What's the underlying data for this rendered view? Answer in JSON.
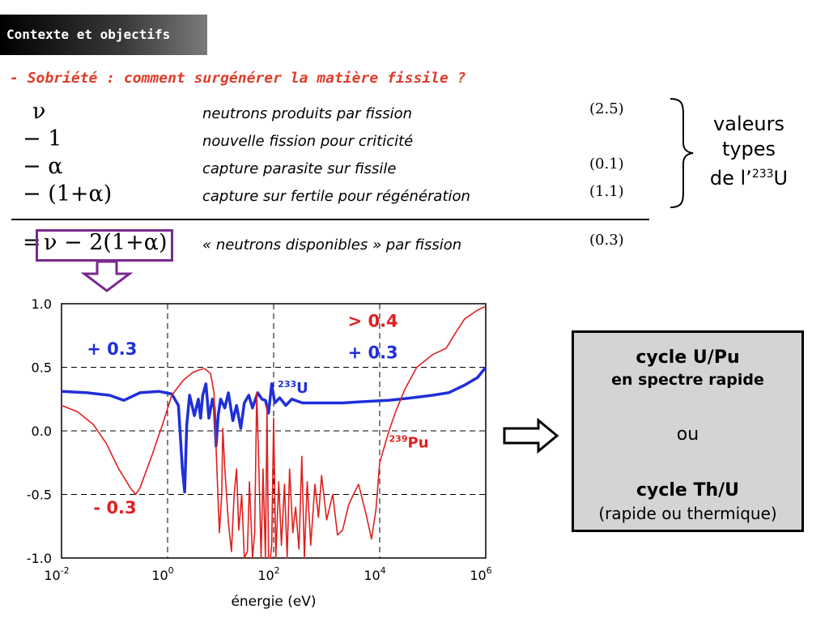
{
  "header": {
    "title": "Contexte et objectifs"
  },
  "subtitle": "- Sobriété : comment surgénérer la matière fissile ?",
  "terms": [
    {
      "symbol": "ν",
      "description": "neutrons produits par fission",
      "value": "(2.5)"
    },
    {
      "symbol": "− 1",
      "description": "nouvelle fission pour criticité",
      "value": ""
    },
    {
      "symbol": "− α",
      "description": "capture parasite sur fissile",
      "value": "(0.1)"
    },
    {
      "symbol": "− (1+α)",
      "description": "capture sur fertile pour régénération",
      "value": "(1.1)"
    }
  ],
  "result": {
    "equals": "=",
    "formula": "ν − 2(1+α)",
    "description": "« neutrons disponibles » par fission",
    "value": "(0.3)"
  },
  "typical_values": {
    "line1": "valeurs",
    "line2": "types",
    "line3_prefix": "de l’",
    "line3_sup": "233",
    "line3_suffix": "U"
  },
  "conclusion_box": {
    "line1": "cycle U/Pu",
    "line2": "en spectre rapide",
    "line3": "ou",
    "line4": "cycle Th/U",
    "line5": "(rapide ou thermique)"
  },
  "colors": {
    "u233": "#1f2fd8",
    "pu239": "#e02020",
    "accent": "#e03c28",
    "frame": "#7a2a8e"
  },
  "chart_data": {
    "type": "line",
    "xlabel": "énergie (eV)",
    "xscale": "log",
    "xlim": [
      0.01,
      1000000
    ],
    "ylim": [
      -1.0,
      1.0
    ],
    "x_ticks": [
      {
        "base": "10",
        "exp": "-2"
      },
      {
        "base": "10",
        "exp": "0"
      },
      {
        "base": "10",
        "exp": "2"
      },
      {
        "base": "10",
        "exp": "4"
      },
      {
        "base": "10",
        "exp": "6"
      }
    ],
    "y_ticks": [
      "1.0",
      "0.5",
      "0.0",
      "-0.5",
      "-1.0"
    ],
    "grid": "dashed",
    "annotations": [
      {
        "text": "+ 0.3",
        "color": "#1f2fd8",
        "x": 0.03,
        "y": 0.6
      },
      {
        "text": "+ 0.3",
        "color": "#1f2fd8",
        "x": 2500,
        "y": 0.57
      },
      {
        "text": "> 0.4",
        "color": "#e02020",
        "x": 2500,
        "y": 0.82
      },
      {
        "text": "- 0.3",
        "color": "#e02020",
        "x": 0.04,
        "y": -0.65
      }
    ],
    "series": [
      {
        "name": "233U",
        "name_sup": "233",
        "name_base": "U",
        "color": "#1f2fd8",
        "label_at": {
          "x": 120,
          "y": 0.3
        },
        "points": [
          [
            0.01,
            0.31
          ],
          [
            0.03,
            0.3
          ],
          [
            0.08,
            0.28
          ],
          [
            0.15,
            0.24
          ],
          [
            0.3,
            0.3
          ],
          [
            0.7,
            0.31
          ],
          [
            1.2,
            0.29
          ],
          [
            1.6,
            0.2
          ],
          [
            1.9,
            -0.3
          ],
          [
            2.1,
            -0.48
          ],
          [
            2.3,
            0.05
          ],
          [
            2.6,
            0.28
          ],
          [
            3.2,
            0.12
          ],
          [
            3.8,
            0.25
          ],
          [
            4.2,
            0.1
          ],
          [
            4.6,
            0.28
          ],
          [
            5.3,
            0.37
          ],
          [
            6,
            0.1
          ],
          [
            7,
            0.25
          ],
          [
            7.6,
            0.18
          ],
          [
            8.2,
            -0.12
          ],
          [
            9,
            0.12
          ],
          [
            10,
            0.25
          ],
          [
            12,
            0.18
          ],
          [
            14,
            0.3
          ],
          [
            17,
            0.08
          ],
          [
            20,
            0.2
          ],
          [
            24,
            0.02
          ],
          [
            28,
            0.22
          ],
          [
            34,
            0.28
          ],
          [
            40,
            0.18
          ],
          [
            50,
            0.3
          ],
          [
            60,
            0.25
          ],
          [
            70,
            0.24
          ],
          [
            80,
            0.14
          ],
          [
            92,
            0.37
          ],
          [
            105,
            0.22
          ],
          [
            130,
            0.26
          ],
          [
            170,
            0.2
          ],
          [
            220,
            0.25
          ],
          [
            350,
            0.22
          ],
          [
            700,
            0.22
          ],
          [
            2000,
            0.22
          ],
          [
            5000,
            0.23
          ],
          [
            15000,
            0.24
          ],
          [
            40000,
            0.26
          ],
          [
            100000,
            0.28
          ],
          [
            200000,
            0.3
          ],
          [
            400000,
            0.36
          ],
          [
            700000,
            0.42
          ],
          [
            1000000,
            0.5
          ]
        ]
      },
      {
        "name": "239Pu",
        "name_sup": "239",
        "name_base": "Pu",
        "color": "#e02020",
        "label_at": {
          "x": 15000,
          "y": -0.13
        },
        "points": [
          [
            0.01,
            0.2
          ],
          [
            0.02,
            0.15
          ],
          [
            0.04,
            0.05
          ],
          [
            0.07,
            -0.1
          ],
          [
            0.12,
            -0.3
          ],
          [
            0.2,
            -0.45
          ],
          [
            0.25,
            -0.5
          ],
          [
            0.3,
            -0.45
          ],
          [
            0.5,
            -0.2
          ],
          [
            0.8,
            0.05
          ],
          [
            1.2,
            0.28
          ],
          [
            2,
            0.4
          ],
          [
            3,
            0.46
          ],
          [
            4,
            0.48
          ],
          [
            5,
            0.49
          ],
          [
            6.5,
            0.45
          ],
          [
            7.5,
            0.3
          ],
          [
            8.5,
            -0.3
          ],
          [
            9.5,
            -0.8
          ],
          [
            10.5,
            -0.5
          ],
          [
            11,
            0.02
          ],
          [
            12,
            -0.3
          ],
          [
            14,
            -0.72
          ],
          [
            16,
            -0.95
          ],
          [
            18,
            -0.5
          ],
          [
            20,
            -0.3
          ],
          [
            22,
            -0.78
          ],
          [
            25,
            -0.5
          ],
          [
            28,
            -1.0
          ],
          [
            32,
            -0.95
          ],
          [
            35,
            -0.4
          ],
          [
            40,
            -1.0
          ],
          [
            44,
            -0.8
          ],
          [
            48,
            0.3
          ],
          [
            52,
            -0.2
          ],
          [
            58,
            -1.0
          ],
          [
            63,
            -0.3
          ],
          [
            70,
            -1.0
          ],
          [
            75,
            0.2
          ],
          [
            80,
            -1.0
          ],
          [
            87,
            -1.0
          ],
          [
            92,
            -0.9
          ],
          [
            100,
            0.1
          ],
          [
            110,
            -1.0
          ],
          [
            125,
            -0.4
          ],
          [
            140,
            -0.9
          ],
          [
            160,
            -0.42
          ],
          [
            180,
            -1.0
          ],
          [
            200,
            -0.3
          ],
          [
            230,
            -0.8
          ],
          [
            260,
            -0.6
          ],
          [
            300,
            -0.93
          ],
          [
            340,
            -0.2
          ],
          [
            380,
            -1.0
          ],
          [
            430,
            -0.4
          ],
          [
            500,
            -0.9
          ],
          [
            600,
            -0.42
          ],
          [
            700,
            -0.68
          ],
          [
            800,
            -0.35
          ],
          [
            1000,
            -0.7
          ],
          [
            1300,
            -0.5
          ],
          [
            1600,
            -0.82
          ],
          [
            2000,
            -0.78
          ],
          [
            2600,
            -0.58
          ],
          [
            3200,
            -0.5
          ],
          [
            4000,
            -0.42
          ],
          [
            5500,
            -0.65
          ],
          [
            7000,
            -0.85
          ],
          [
            8500,
            -0.62
          ],
          [
            10000,
            -0.25
          ],
          [
            15000,
            0.0
          ],
          [
            20000,
            0.15
          ],
          [
            30000,
            0.33
          ],
          [
            50000,
            0.5
          ],
          [
            100000,
            0.6
          ],
          [
            180000,
            0.65
          ],
          [
            250000,
            0.75
          ],
          [
            400000,
            0.88
          ],
          [
            700000,
            0.95
          ],
          [
            1000000,
            0.98
          ]
        ]
      }
    ]
  }
}
